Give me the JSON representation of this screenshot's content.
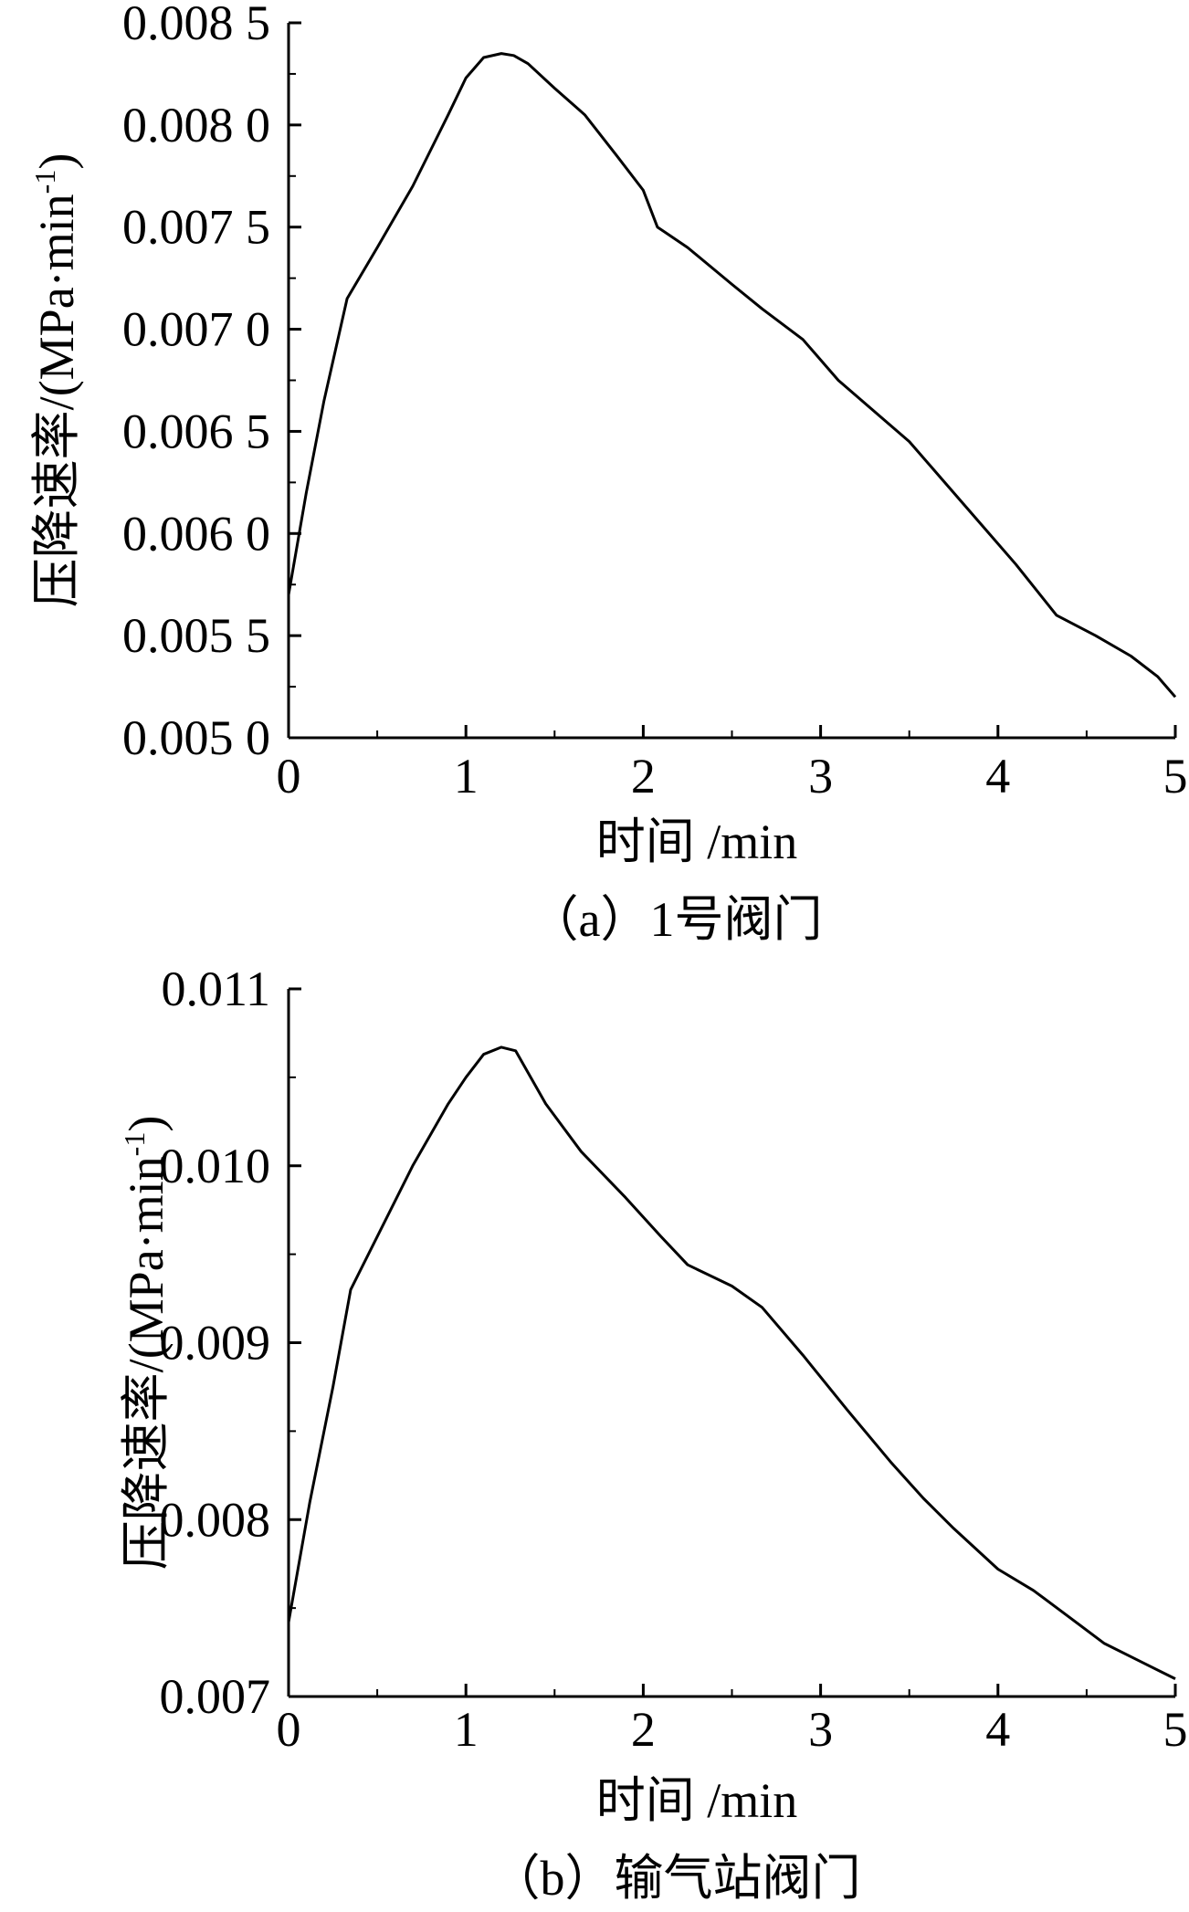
{
  "chart_data": [
    {
      "type": "line",
      "caption": "（a）1号阀门",
      "xlabel": "时间 /min",
      "ylabel_main": "压降速率/(MPa·min",
      "ylabel_sup": "-1",
      "ylabel_close": ")",
      "xlim": [
        0,
        5
      ],
      "ylim": [
        0.005,
        0.0085
      ],
      "xticks": [
        0,
        1,
        2,
        3,
        4,
        5
      ],
      "xtick_labels": [
        "0",
        "1",
        "2",
        "3",
        "4",
        "5"
      ],
      "yticks": [
        0.005,
        0.0055,
        0.006,
        0.0065,
        0.007,
        0.0075,
        0.008,
        0.0085
      ],
      "ytick_labels": [
        "0.005 0",
        "0.005 5",
        "0.006 0",
        "0.006 5",
        "0.007 0",
        "0.007 5",
        "0.008 0",
        "0.008 5"
      ],
      "x": [
        0,
        0.1,
        0.2,
        0.33,
        0.5,
        0.7,
        0.9,
        1.0,
        1.1,
        1.2,
        1.27,
        1.35,
        1.5,
        1.67,
        1.85,
        2.0,
        2.08,
        2.25,
        2.5,
        2.67,
        2.9,
        3.1,
        3.3,
        3.5,
        3.67,
        3.9,
        4.1,
        4.33,
        4.55,
        4.75,
        4.9,
        5.0
      ],
      "y": [
        0.0057,
        0.0062,
        0.00665,
        0.00715,
        0.0074,
        0.0077,
        0.00805,
        0.00823,
        0.00833,
        0.00835,
        0.00834,
        0.0083,
        0.00818,
        0.00805,
        0.00785,
        0.00768,
        0.0075,
        0.0074,
        0.00722,
        0.0071,
        0.00695,
        0.00675,
        0.0066,
        0.00645,
        0.00628,
        0.00605,
        0.00585,
        0.0056,
        0.0055,
        0.0054,
        0.0053,
        0.0052
      ]
    },
    {
      "type": "line",
      "caption": "（b）输气站阀门",
      "xlabel": "时间 /min",
      "ylabel_main": "压降速率/(MPa·min",
      "ylabel_sup": "-1",
      "ylabel_close": ")",
      "xlim": [
        0,
        5
      ],
      "ylim": [
        0.007,
        0.011
      ],
      "xticks": [
        0,
        1,
        2,
        3,
        4,
        5
      ],
      "xtick_labels": [
        "0",
        "1",
        "2",
        "3",
        "4",
        "5"
      ],
      "yticks": [
        0.007,
        0.008,
        0.009,
        0.01,
        0.011
      ],
      "ytick_labels": [
        "0.007",
        "0.008",
        "0.009",
        "0.010",
        "0.011"
      ],
      "x": [
        0,
        0.12,
        0.25,
        0.35,
        0.5,
        0.7,
        0.9,
        1.0,
        1.1,
        1.2,
        1.28,
        1.45,
        1.65,
        1.9,
        2.1,
        2.25,
        2.5,
        2.67,
        2.9,
        3.15,
        3.4,
        3.58,
        3.75,
        4.0,
        4.2,
        4.4,
        4.6,
        4.8,
        5.0
      ],
      "y": [
        0.00742,
        0.0081,
        0.00875,
        0.0093,
        0.0096,
        0.01,
        0.01035,
        0.0105,
        0.01063,
        0.01067,
        0.01065,
        0.01035,
        0.01008,
        0.00982,
        0.0096,
        0.00944,
        0.00932,
        0.0092,
        0.00893,
        0.00862,
        0.00832,
        0.00812,
        0.00795,
        0.00772,
        0.0076,
        0.00745,
        0.0073,
        0.0072,
        0.0071
      ]
    }
  ]
}
